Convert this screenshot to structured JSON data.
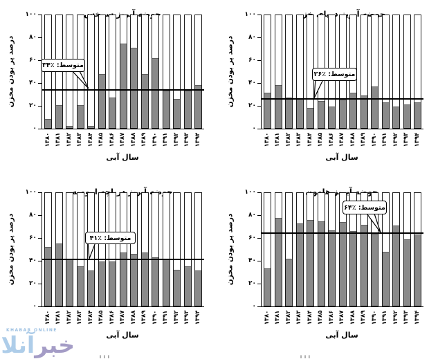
{
  "axes": {
    "ylim": [
      0,
      100
    ],
    "yticks": [
      {
        "v": 0,
        "label": "۰"
      },
      {
        "v": 20,
        "label": "۲۰"
      },
      {
        "v": 40,
        "label": "۴۰"
      },
      {
        "v": 60,
        "label": "۶۰"
      },
      {
        "v": 80,
        "label": "۸۰"
      },
      {
        "v": 100,
        "label": "۱۰۰"
      }
    ]
  },
  "chart_data": [
    {
      "type": "bar",
      "title": "حوضه آبریز سرخس",
      "xlabel": "سال آبی",
      "ylabel": "درصد پر بودن مخزن",
      "average": 34,
      "callout_label": "متوسط: ٪۳۴",
      "categories": [
        "۱۳۸۰",
        "۱۳۸۱",
        "۱۳۸۲",
        "۱۳۸۳",
        "۱۳۸۴",
        "۱۳۸۵",
        "۱۳۸۶",
        "۱۳۸۷",
        "۱۳۸۸",
        "۱۳۸۹",
        "۱۳۹۰",
        "۱۳۹۱",
        "۱۳۹۲",
        "۱۳۹۳",
        "۱۳۹۴"
      ],
      "values": [
        8,
        20,
        2,
        20,
        2,
        48,
        27,
        75,
        71,
        48,
        62,
        33,
        26,
        33,
        38
      ],
      "ylim": [
        0,
        100
      ],
      "grid": false,
      "bar_color": "#8a8a8a"
    },
    {
      "type": "bar",
      "title": "حوضه آبریز دریای خزر",
      "xlabel": "سال آبی",
      "ylabel": "درصد پر بودن مخزن",
      "average": 26,
      "callout_label": "متوسط: ٪۲۶",
      "categories": [
        "۱۳۸۰",
        "۱۳۸۱",
        "۱۳۸۲",
        "۱۳۸۳",
        "۱۳۸۴",
        "۱۳۸۵",
        "۱۳۸۶",
        "۱۳۸۷",
        "۱۳۸۸",
        "۱۳۸۹",
        "۱۳۹۰",
        "۱۳۹۱",
        "۱۳۹۲",
        "۱۳۹۳",
        "۱۳۹۴"
      ],
      "values": [
        31,
        38,
        27,
        26,
        18,
        24,
        19,
        25,
        31,
        29,
        37,
        23,
        19,
        21,
        23
      ],
      "ylim": [
        0,
        100
      ],
      "grid": false,
      "bar_color": "#8a8a8a"
    },
    {
      "type": "bar",
      "title": "حوضه آبریز دریاچه ارومیه",
      "xlabel": "سال آبی",
      "ylabel": "درصد پر بودن مخزن",
      "average": 41,
      "callout_label": "متوسط: ٪۴۱",
      "categories": [
        "۱۳۸۰",
        "۱۳۸۱",
        "۱۳۸۲",
        "۱۳۸۳",
        "۱۳۸۴",
        "۱۳۸۵",
        "۱۳۸۶",
        "۱۳۸۷",
        "۱۳۸۸",
        "۱۳۸۹",
        "۱۳۹۰",
        "۱۳۹۱",
        "۱۳۹۲",
        "۱۳۹۳",
        "۱۳۹۴"
      ],
      "values": [
        52,
        55,
        41,
        35,
        31,
        39,
        39,
        47,
        46,
        47,
        43,
        41,
        32,
        35,
        31
      ],
      "ylim": [
        0,
        100
      ],
      "grid": false,
      "bar_color": "#8a8a8a"
    },
    {
      "type": "bar",
      "title": "حوضه آبریز هامون",
      "xlabel": "سال آبی",
      "ylabel": "درصد پر بودن مخزن",
      "average": 64,
      "callout_label": "متوسط: ٪۶۴",
      "categories": [
        "۱۳۸۰",
        "۱۳۸۱",
        "۱۳۸۲",
        "۱۳۸۳",
        "۱۳۸۴",
        "۱۳۸۵",
        "۱۳۸۶",
        "۱۳۸۷",
        "۱۳۸۸",
        "۱۳۸۹",
        "۱۳۹۰",
        "۱۳۹۱",
        "۱۳۹۲",
        "۱۳۹۳",
        "۱۳۹۴"
      ],
      "values": [
        33,
        78,
        42,
        73,
        76,
        75,
        67,
        74,
        66,
        72,
        64,
        48,
        71,
        59,
        63
      ],
      "ylim": [
        0,
        100
      ],
      "grid": false,
      "bar_color": "#8a8a8a"
    }
  ],
  "watermark": {
    "small_text": "KHABAR ONLINE",
    "logo_right": "خبر",
    "logo_left": "آنلاین"
  },
  "bottom_cropped_text": {
    "left_fragment": "آ آ آ",
    "right_fragment": "آ آ آ"
  },
  "colors": {
    "bar_fill": "#8a8a8a",
    "bar_border": "#1c1c1c",
    "mean_line": "#000000",
    "watermark_purple": "#a49cc6",
    "watermark_blue": "#aecde9"
  }
}
